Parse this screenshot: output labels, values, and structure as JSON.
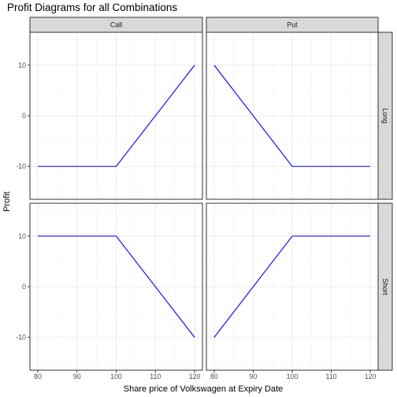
{
  "chart_data": {
    "type": "line",
    "title": "Profit Diagrams for all Combinations",
    "xlabel": "Share price of Volkswagen at Expiry Date",
    "ylabel": "Profit",
    "xlim": [
      78,
      122
    ],
    "ylim": [
      -16.5,
      16.5
    ],
    "x_ticks": [
      80,
      90,
      100,
      110,
      120
    ],
    "y_ticks": [
      -10,
      0,
      10
    ],
    "grid": true,
    "line_color": "#0000ff",
    "column_facets": [
      "Call",
      "Put"
    ],
    "row_facets": [
      "Long",
      "Short"
    ],
    "panels": [
      {
        "column": "Call",
        "row": "Long",
        "x": [
          80,
          100,
          120
        ],
        "y": [
          -10,
          -10,
          10
        ]
      },
      {
        "column": "Put",
        "row": "Long",
        "x": [
          80,
          100,
          120
        ],
        "y": [
          10,
          -10,
          -10
        ]
      },
      {
        "column": "Call",
        "row": "Short",
        "x": [
          80,
          100,
          120
        ],
        "y": [
          10,
          10,
          -10
        ]
      },
      {
        "column": "Put",
        "row": "Short",
        "x": [
          80,
          100,
          120
        ],
        "y": [
          -10,
          10,
          10
        ]
      }
    ]
  }
}
